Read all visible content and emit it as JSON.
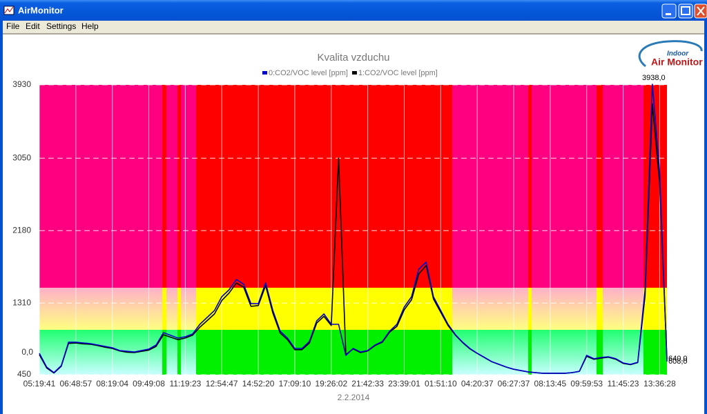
{
  "window": {
    "title": "AirMonitor",
    "menu": [
      "File",
      "Edit",
      "Settings",
      "Help"
    ]
  },
  "logo": {
    "small": "Indoor",
    "large": "Air Monitor"
  },
  "chart_data": {
    "type": "line",
    "title": "Kvalita vzduchu",
    "x_label": "2.2.2014",
    "annotations": [
      "0,0"
    ],
    "grid": true,
    "legend": "top",
    "xlim": [
      0,
      86
    ],
    "xticks": [
      {
        "value": 0,
        "label": "05:19:41"
      },
      {
        "value": 5,
        "label": "06:48:57"
      },
      {
        "value": 10,
        "label": "08:19:04"
      },
      {
        "value": 15,
        "label": "09:49:08"
      },
      {
        "value": 20,
        "label": "11:19:23"
      },
      {
        "value": 25,
        "label": "12:54:47"
      },
      {
        "value": 30,
        "label": "14:52:20"
      },
      {
        "value": 35,
        "label": "17:09:10"
      },
      {
        "value": 40,
        "label": "19:26:02"
      },
      {
        "value": 45,
        "label": "21:42:33"
      },
      {
        "value": 50,
        "label": "23:39:01"
      },
      {
        "value": 55,
        "label": "01:51:10"
      },
      {
        "value": 60,
        "label": "04:20:37"
      },
      {
        "value": 65,
        "label": "06:27:37"
      },
      {
        "value": 70,
        "label": "08:13:45"
      },
      {
        "value": 75,
        "label": "09:59:53"
      },
      {
        "value": 80,
        "label": "11:45:23"
      },
      {
        "value": 85,
        "label": "13:36:28"
      }
    ],
    "ylim": [
      450,
      3930
    ],
    "yticks": [
      450,
      1310,
      2180,
      3050,
      3930
    ],
    "series": [
      {
        "name": "0:CO2/VOC level [ppm]",
        "color": "#0000cc",
        "values": [
          707,
          541,
          475,
          558,
          840,
          840,
          831,
          823,
          806,
          790,
          773,
          740,
          732,
          723,
          740,
          757,
          806,
          955,
          922,
          889,
          906,
          939,
          1055,
          1138,
          1221,
          1386,
          1469,
          1593,
          1535,
          1303,
          1303,
          1552,
          1221,
          972,
          889,
          765,
          765,
          848,
          1096,
          1179,
          1055,
          1055,
          682,
          765,
          723,
          740,
          806,
          848,
          972,
          1055,
          1262,
          1386,
          1718,
          1801,
          1386,
          1221,
          1055,
          931,
          840,
          765,
          707,
          657,
          607,
          574,
          541,
          516,
          500,
          483,
          475,
          467,
          467,
          467,
          467,
          475,
          491,
          682,
          641,
          657,
          665,
          641,
          591,
          574,
          599,
          1469,
          3938,
          2876,
          608
        ],
        "value_labels": [
          null,
          null,
          null,
          null,
          null,
          null,
          null,
          null,
          null,
          null,
          null,
          null,
          null,
          null,
          null,
          null,
          null,
          null,
          null,
          null,
          null,
          null,
          null,
          null,
          null,
          null,
          null,
          null,
          null,
          null,
          null,
          null,
          null,
          null,
          null,
          null,
          null,
          null,
          null,
          null,
          null,
          null,
          null,
          null,
          null,
          null,
          null,
          null,
          null,
          null,
          null,
          null,
          null,
          null,
          null,
          null,
          null,
          null,
          null,
          null,
          null,
          null,
          null,
          null,
          null,
          null,
          null,
          null,
          null,
          null,
          null,
          null,
          null,
          null,
          null,
          null,
          null,
          null,
          null,
          null,
          null,
          null,
          null,
          null,
          "3938,0",
          null,
          "608,0"
        ]
      },
      {
        "name": "1:CO2/VOC level [ppm]",
        "color": "#000000",
        "values": [
          690,
          530,
          470,
          550,
          825,
          830,
          820,
          815,
          800,
          780,
          765,
          735,
          720,
          715,
          730,
          745,
          790,
          930,
          900,
          870,
          890,
          925,
          1020,
          1100,
          1180,
          1340,
          1430,
          1550,
          1500,
          1270,
          1280,
          1520,
          1190,
          950,
          870,
          750,
          750,
          830,
          1070,
          1150,
          1040,
          3050,
          690,
          760,
          715,
          735,
          800,
          840,
          960,
          1030,
          1230,
          1350,
          1660,
          1760,
          1360,
          1200,
          1040,
          925,
          835,
          760,
          705,
          655,
          605,
          572,
          540,
          515,
          498,
          482,
          474,
          466,
          466,
          466,
          466,
          474,
          490,
          670,
          635,
          650,
          660,
          635,
          585,
          570,
          595,
          1400,
          3700,
          2750,
          640
        ],
        "value_labels": [
          null,
          null,
          null,
          null,
          null,
          null,
          null,
          null,
          null,
          null,
          null,
          null,
          null,
          null,
          null,
          null,
          null,
          null,
          null,
          null,
          null,
          null,
          null,
          null,
          null,
          null,
          null,
          null,
          null,
          null,
          null,
          null,
          null,
          null,
          null,
          null,
          null,
          null,
          null,
          null,
          null,
          null,
          null,
          null,
          null,
          null,
          null,
          null,
          null,
          null,
          null,
          null,
          null,
          null,
          null,
          null,
          null,
          null,
          null,
          null,
          null,
          null,
          null,
          null,
          null,
          null,
          null,
          null,
          null,
          null,
          null,
          null,
          null,
          null,
          null,
          null,
          null,
          null,
          null,
          null,
          null,
          null,
          null,
          null,
          null,
          null,
          "640,0"
        ]
      }
    ]
  }
}
